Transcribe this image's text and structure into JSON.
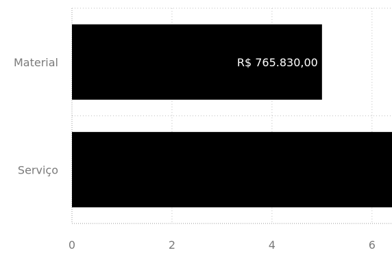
{
  "chart_data": {
    "type": "bar",
    "orientation": "horizontal",
    "categories": [
      "Material",
      "Serviço"
    ],
    "values": [
      5.0,
      6.4
    ],
    "data_labels": [
      "R$ 765.830,00",
      ""
    ],
    "xlim": [
      0,
      6.4
    ],
    "x_ticks": [
      0,
      2,
      4,
      6
    ],
    "x_tick_labels": [
      "0",
      "2",
      "4",
      "6"
    ],
    "grid": true,
    "bar_color": "#000000",
    "title": "",
    "xlabel": "",
    "ylabel": ""
  }
}
